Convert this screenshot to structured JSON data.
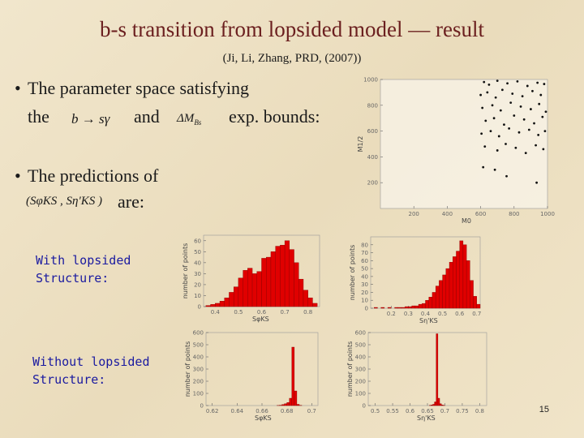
{
  "title": "b-s transition from lopsided model — result",
  "subtitle": "(Ji, Li, Zhang, PRD, (2007))",
  "bullet1": {
    "line1": "The parameter space satisfying",
    "the": "the",
    "formula1": "b → sγ",
    "and": "and",
    "formula2": {
      "main": "ΔM",
      "sub": "Bs"
    },
    "tail": "exp. bounds:"
  },
  "bullet2": {
    "line1": "The predictions of",
    "formula": "(SφKS , Sη'KS )",
    "tail": "are:"
  },
  "label_with": [
    "With lopsided",
    "Structure:"
  ],
  "label_without": [
    "Without lopsided",
    "Structure:"
  ],
  "page_number": "15",
  "chart_data": [
    {
      "type": "scatter",
      "xlabel": "M0",
      "ylabel": "M1/2",
      "xlim": [
        0,
        1000
      ],
      "ylim": [
        0,
        1000
      ],
      "xticks": [
        200,
        400,
        600,
        800,
        1000
      ],
      "yticks": [
        200,
        400,
        600,
        800,
        1000
      ],
      "color": "#111111",
      "x": [
        620,
        650,
        700,
        760,
        820,
        880,
        940,
        980,
        600,
        640,
        690,
        730,
        790,
        850,
        910,
        960,
        610,
        670,
        720,
        780,
        840,
        900,
        950,
        990,
        630,
        680,
        740,
        800,
        860,
        920,
        970,
        605,
        660,
        710,
        770,
        830,
        890,
        945,
        985,
        625,
        700,
        750,
        810,
        870,
        930,
        975,
        615,
        685,
        755,
        935
      ],
      "y": [
        980,
        960,
        990,
        970,
        985,
        950,
        975,
        965,
        880,
        900,
        860,
        920,
        890,
        870,
        910,
        880,
        780,
        800,
        760,
        820,
        790,
        770,
        810,
        750,
        680,
        700,
        650,
        720,
        690,
        660,
        710,
        580,
        600,
        560,
        620,
        590,
        610,
        570,
        600,
        480,
        450,
        500,
        470,
        430,
        490,
        460,
        320,
        300,
        250,
        200
      ]
    },
    {
      "type": "histogram",
      "xlabel": "SφKS",
      "ylabel": "number of points",
      "color": "#e00000",
      "xlim": [
        0.35,
        0.85
      ],
      "ylim": [
        0,
        65
      ],
      "xticks": [
        0.4,
        0.5,
        0.6,
        0.7,
        0.8
      ],
      "yticks": [
        0,
        10,
        20,
        30,
        40,
        50,
        60
      ],
      "bins": [
        0.36,
        0.38,
        0.4,
        0.42,
        0.44,
        0.46,
        0.48,
        0.5,
        0.52,
        0.54,
        0.56,
        0.58,
        0.6,
        0.62,
        0.64,
        0.66,
        0.68,
        0.7,
        0.72,
        0.74,
        0.76,
        0.78,
        0.8,
        0.82,
        0.84
      ],
      "values": [
        1,
        2,
        3,
        5,
        8,
        13,
        18,
        26,
        33,
        35,
        30,
        32,
        44,
        45,
        50,
        55,
        56,
        60,
        52,
        40,
        25,
        15,
        8,
        3
      ]
    },
    {
      "type": "histogram",
      "xlabel": "Sη'KS",
      "ylabel": "number of points",
      "color": "#e00000",
      "xlim": [
        0.08,
        0.72
      ],
      "ylim": [
        0,
        90
      ],
      "xticks": [
        0.2,
        0.3,
        0.4,
        0.5,
        0.6,
        0.7
      ],
      "yticks": [
        0,
        10,
        20,
        30,
        40,
        50,
        60,
        70,
        80
      ],
      "bins": [
        0.1,
        0.12,
        0.14,
        0.16,
        0.18,
        0.2,
        0.22,
        0.24,
        0.26,
        0.28,
        0.3,
        0.32,
        0.34,
        0.36,
        0.38,
        0.4,
        0.42,
        0.44,
        0.46,
        0.48,
        0.5,
        0.52,
        0.54,
        0.56,
        0.58,
        0.6,
        0.62,
        0.64,
        0.66,
        0.68,
        0.7,
        0.72
      ],
      "values": [
        1,
        0,
        1,
        0,
        1,
        0,
        1,
        1,
        1,
        2,
        2,
        3,
        3,
        5,
        6,
        10,
        14,
        20,
        28,
        35,
        42,
        50,
        58,
        65,
        72,
        85,
        80,
        60,
        35,
        15,
        5
      ]
    },
    {
      "type": "histogram",
      "xlabel": "SφKS",
      "ylabel": "number of points",
      "color": "#e00000",
      "xlim": [
        0.615,
        0.705
      ],
      "ylim": [
        0,
        600
      ],
      "xticks": [
        0.62,
        0.64,
        0.66,
        0.68,
        0.7
      ],
      "yticks": [
        0,
        100,
        200,
        300,
        400,
        500,
        600
      ],
      "bins": [
        0.672,
        0.674,
        0.676,
        0.678,
        0.68,
        0.682,
        0.684,
        0.686,
        0.688,
        0.69,
        0.692
      ],
      "values": [
        1,
        3,
        8,
        15,
        25,
        60,
        480,
        120,
        10,
        2
      ]
    },
    {
      "type": "histogram",
      "xlabel": "Sη'KS",
      "ylabel": "number of points",
      "color": "#e00000",
      "xlim": [
        0.48,
        0.82
      ],
      "ylim": [
        0,
        600
      ],
      "xticks": [
        0.5,
        0.55,
        0.6,
        0.65,
        0.7,
        0.75,
        0.8
      ],
      "yticks": [
        0,
        100,
        200,
        300,
        400,
        500,
        600
      ],
      "bins": [
        0.655,
        0.66,
        0.665,
        0.67,
        0.675,
        0.68,
        0.685,
        0.69,
        0.695,
        0.7
      ],
      "values": [
        2,
        5,
        10,
        30,
        590,
        60,
        15,
        5,
        2
      ]
    }
  ]
}
